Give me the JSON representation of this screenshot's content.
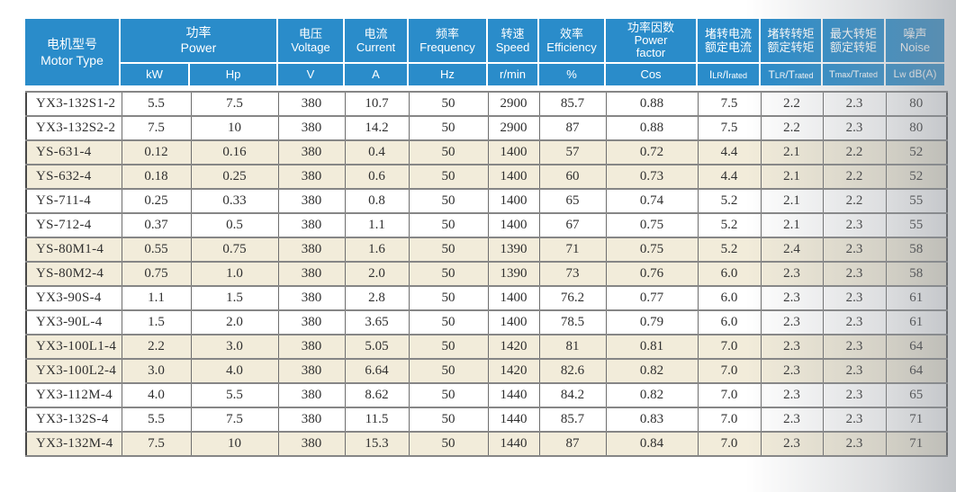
{
  "colors": {
    "header_blue": "#2a8cca",
    "row_beige": "#f2ecda",
    "grid_line": "#868686",
    "outer_border": "#474747",
    "header_text": "#ffffff",
    "data_text": "#2f2f2f",
    "page_shadow_gray": "#bfc3c8"
  },
  "header": {
    "motor": {
      "zh": "电机型号",
      "en": "Motor Type"
    },
    "power": {
      "zh": "功率",
      "en": "Power"
    },
    "voltage": {
      "zh": "电压",
      "en": "Voltage"
    },
    "current": {
      "zh": "电流",
      "en": "Current"
    },
    "frequency": {
      "zh": "频率",
      "en": "Frequency"
    },
    "speed": {
      "zh": "转速",
      "en": "Speed"
    },
    "efficiency": {
      "zh": "效率",
      "en": "Efficiency"
    },
    "power_factor": {
      "zh": "功率因数",
      "en1": "Power",
      "en2": "factor"
    },
    "locked_current": {
      "zh1": "堵转电流",
      "zh2": "额定电流"
    },
    "locked_torque": {
      "zh1": "堵转转矩",
      "zh2": "额定转矩"
    },
    "max_torque": {
      "zh1": "最大转矩",
      "zh2": "额定转矩"
    },
    "noise": {
      "zh": "噪声",
      "en": "Noise"
    },
    "units": {
      "kw": "kW",
      "hp": "Hp",
      "v": "V",
      "a": "A",
      "hz": "Hz",
      "rpm": "r/min",
      "eff": "%",
      "cos": "Cos",
      "ilr": [
        "I",
        "LR",
        "/I",
        "rated"
      ],
      "tlr": [
        "T",
        "LR",
        "/T",
        "rated"
      ],
      "tmax": [
        "T",
        "max",
        "/T",
        "rated"
      ],
      "lw": [
        "L",
        "w",
        " dB(A)"
      ]
    }
  },
  "table": {
    "column_keys": [
      "model",
      "kw",
      "hp",
      "voltage",
      "current",
      "frequency",
      "speed",
      "efficiency",
      "cos",
      "ilr-ratio",
      "tlr-ratio",
      "tmax-ratio",
      "noise"
    ],
    "rows": [
      {
        "shaded": false,
        "cells": [
          "YX3-132S1-2",
          "5.5",
          "7.5",
          "380",
          "10.7",
          "50",
          "2900",
          "85.7",
          "0.88",
          "7.5",
          "2.2",
          "2.3",
          "80"
        ]
      },
      {
        "shaded": false,
        "cells": [
          "YX3-132S2-2",
          "7.5",
          "10",
          "380",
          "14.2",
          "50",
          "2900",
          "87",
          "0.88",
          "7.5",
          "2.2",
          "2.3",
          "80"
        ]
      },
      {
        "shaded": true,
        "cells": [
          "YS-631-4",
          "0.12",
          "0.16",
          "380",
          "0.4",
          "50",
          "1400",
          "57",
          "0.72",
          "4.4",
          "2.1",
          "2.2",
          "52"
        ]
      },
      {
        "shaded": true,
        "cells": [
          "YS-632-4",
          "0.18",
          "0.25",
          "380",
          "0.6",
          "50",
          "1400",
          "60",
          "0.73",
          "4.4",
          "2.1",
          "2.2",
          "52"
        ]
      },
      {
        "shaded": false,
        "cells": [
          "YS-711-4",
          "0.25",
          "0.33",
          "380",
          "0.8",
          "50",
          "1400",
          "65",
          "0.74",
          "5.2",
          "2.1",
          "2.2",
          "55"
        ]
      },
      {
        "shaded": false,
        "cells": [
          "YS-712-4",
          "0.37",
          "0.5",
          "380",
          "1.1",
          "50",
          "1400",
          "67",
          "0.75",
          "5.2",
          "2.1",
          "2.3",
          "55"
        ]
      },
      {
        "shaded": true,
        "cells": [
          "YS-80M1-4",
          "0.55",
          "0.75",
          "380",
          "1.6",
          "50",
          "1390",
          "71",
          "0.75",
          "5.2",
          "2.4",
          "2.3",
          "58"
        ]
      },
      {
        "shaded": true,
        "cells": [
          "YS-80M2-4",
          "0.75",
          "1.0",
          "380",
          "2.0",
          "50",
          "1390",
          "73",
          "0.76",
          "6.0",
          "2.3",
          "2.3",
          "58"
        ]
      },
      {
        "shaded": false,
        "cells": [
          "YX3-90S-4",
          "1.1",
          "1.5",
          "380",
          "2.8",
          "50",
          "1400",
          "76.2",
          "0.77",
          "6.0",
          "2.3",
          "2.3",
          "61"
        ]
      },
      {
        "shaded": false,
        "cells": [
          "YX3-90L-4",
          "1.5",
          "2.0",
          "380",
          "3.65",
          "50",
          "1400",
          "78.5",
          "0.79",
          "6.0",
          "2.3",
          "2.3",
          "61"
        ]
      },
      {
        "shaded": true,
        "cells": [
          "YX3-100L1-4",
          "2.2",
          "3.0",
          "380",
          "5.05",
          "50",
          "1420",
          "81",
          "0.81",
          "7.0",
          "2.3",
          "2.3",
          "64"
        ]
      },
      {
        "shaded": true,
        "cells": [
          "YX3-100L2-4",
          "3.0",
          "4.0",
          "380",
          "6.64",
          "50",
          "1420",
          "82.6",
          "0.82",
          "7.0",
          "2.3",
          "2.3",
          "64"
        ]
      },
      {
        "shaded": false,
        "cells": [
          "YX3-112M-4",
          "4.0",
          "5.5",
          "380",
          "8.62",
          "50",
          "1440",
          "84.2",
          "0.82",
          "7.0",
          "2.3",
          "2.3",
          "65"
        ]
      },
      {
        "shaded": false,
        "cells": [
          "YX3-132S-4",
          "5.5",
          "7.5",
          "380",
          "11.5",
          "50",
          "1440",
          "85.7",
          "0.83",
          "7.0",
          "2.3",
          "2.3",
          "71"
        ]
      },
      {
        "shaded": true,
        "cells": [
          "YX3-132M-4",
          "7.5",
          "10",
          "380",
          "15.3",
          "50",
          "1440",
          "87",
          "0.84",
          "7.0",
          "2.3",
          "2.3",
          "71"
        ]
      }
    ]
  }
}
